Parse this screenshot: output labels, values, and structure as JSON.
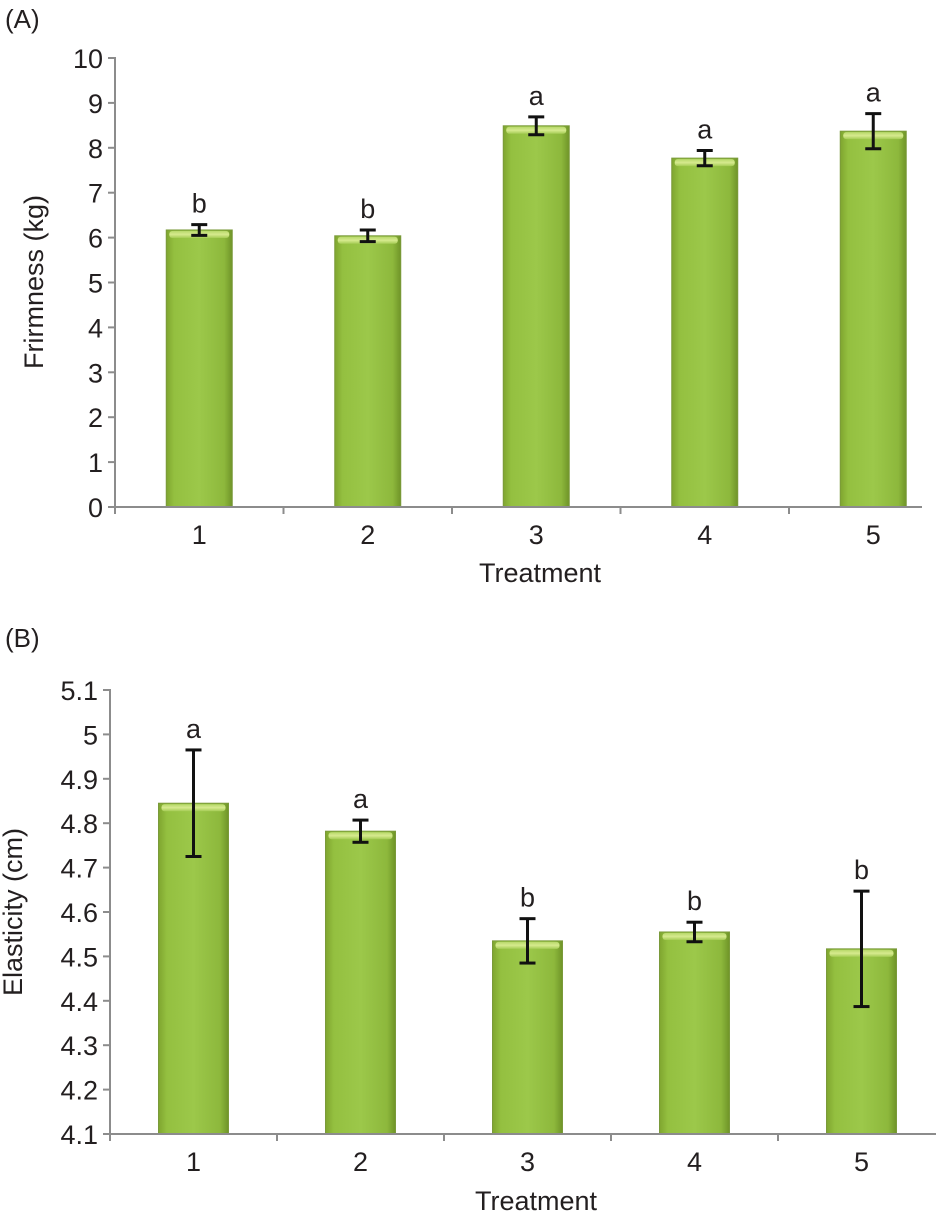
{
  "chart_data": [
    {
      "panel_label": "(A)",
      "type": "bar",
      "title": "",
      "xlabel": "Treatment",
      "ylabel": "Frirmness (kg)",
      "categories": [
        "1",
        "2",
        "3",
        "4",
        "5"
      ],
      "values": [
        6.17,
        6.04,
        8.49,
        7.77,
        8.37
      ],
      "error": [
        0.12,
        0.13,
        0.2,
        0.17,
        0.39
      ],
      "significance_letters": [
        "b",
        "b",
        "a",
        "a",
        "a"
      ],
      "ylim": [
        0,
        10
      ],
      "yticks": [
        "0",
        "1",
        "2",
        "3",
        "4",
        "5",
        "6",
        "7",
        "8",
        "9",
        "10"
      ],
      "ytick_values": [
        0,
        1,
        2,
        3,
        4,
        5,
        6,
        7,
        8,
        9,
        10
      ],
      "grid": false,
      "legend": "none",
      "bar_color": "#8db83c"
    },
    {
      "panel_label": "(B)",
      "type": "bar",
      "title": "",
      "xlabel": "Treatment",
      "ylabel": "Elasticity (cm)",
      "categories": [
        "1",
        "2",
        "3",
        "4",
        "5"
      ],
      "values": [
        4.845,
        4.782,
        4.535,
        4.555,
        4.517
      ],
      "error": [
        0.12,
        0.025,
        0.05,
        0.022,
        0.13
      ],
      "significance_letters": [
        "a",
        "a",
        "b",
        "b",
        "b"
      ],
      "ylim": [
        4.1,
        5.1
      ],
      "yticks": [
        "4.1",
        "4.2",
        "4.3",
        "4.4",
        "4.5",
        "4.6",
        "4.7",
        "4.8",
        "4.9",
        "5",
        "5.1"
      ],
      "ytick_values": [
        4.1,
        4.2,
        4.3,
        4.4,
        4.5,
        4.6,
        4.7,
        4.8,
        4.9,
        5.0,
        5.1
      ],
      "grid": false,
      "legend": "none",
      "bar_color": "#8db83c"
    }
  ]
}
